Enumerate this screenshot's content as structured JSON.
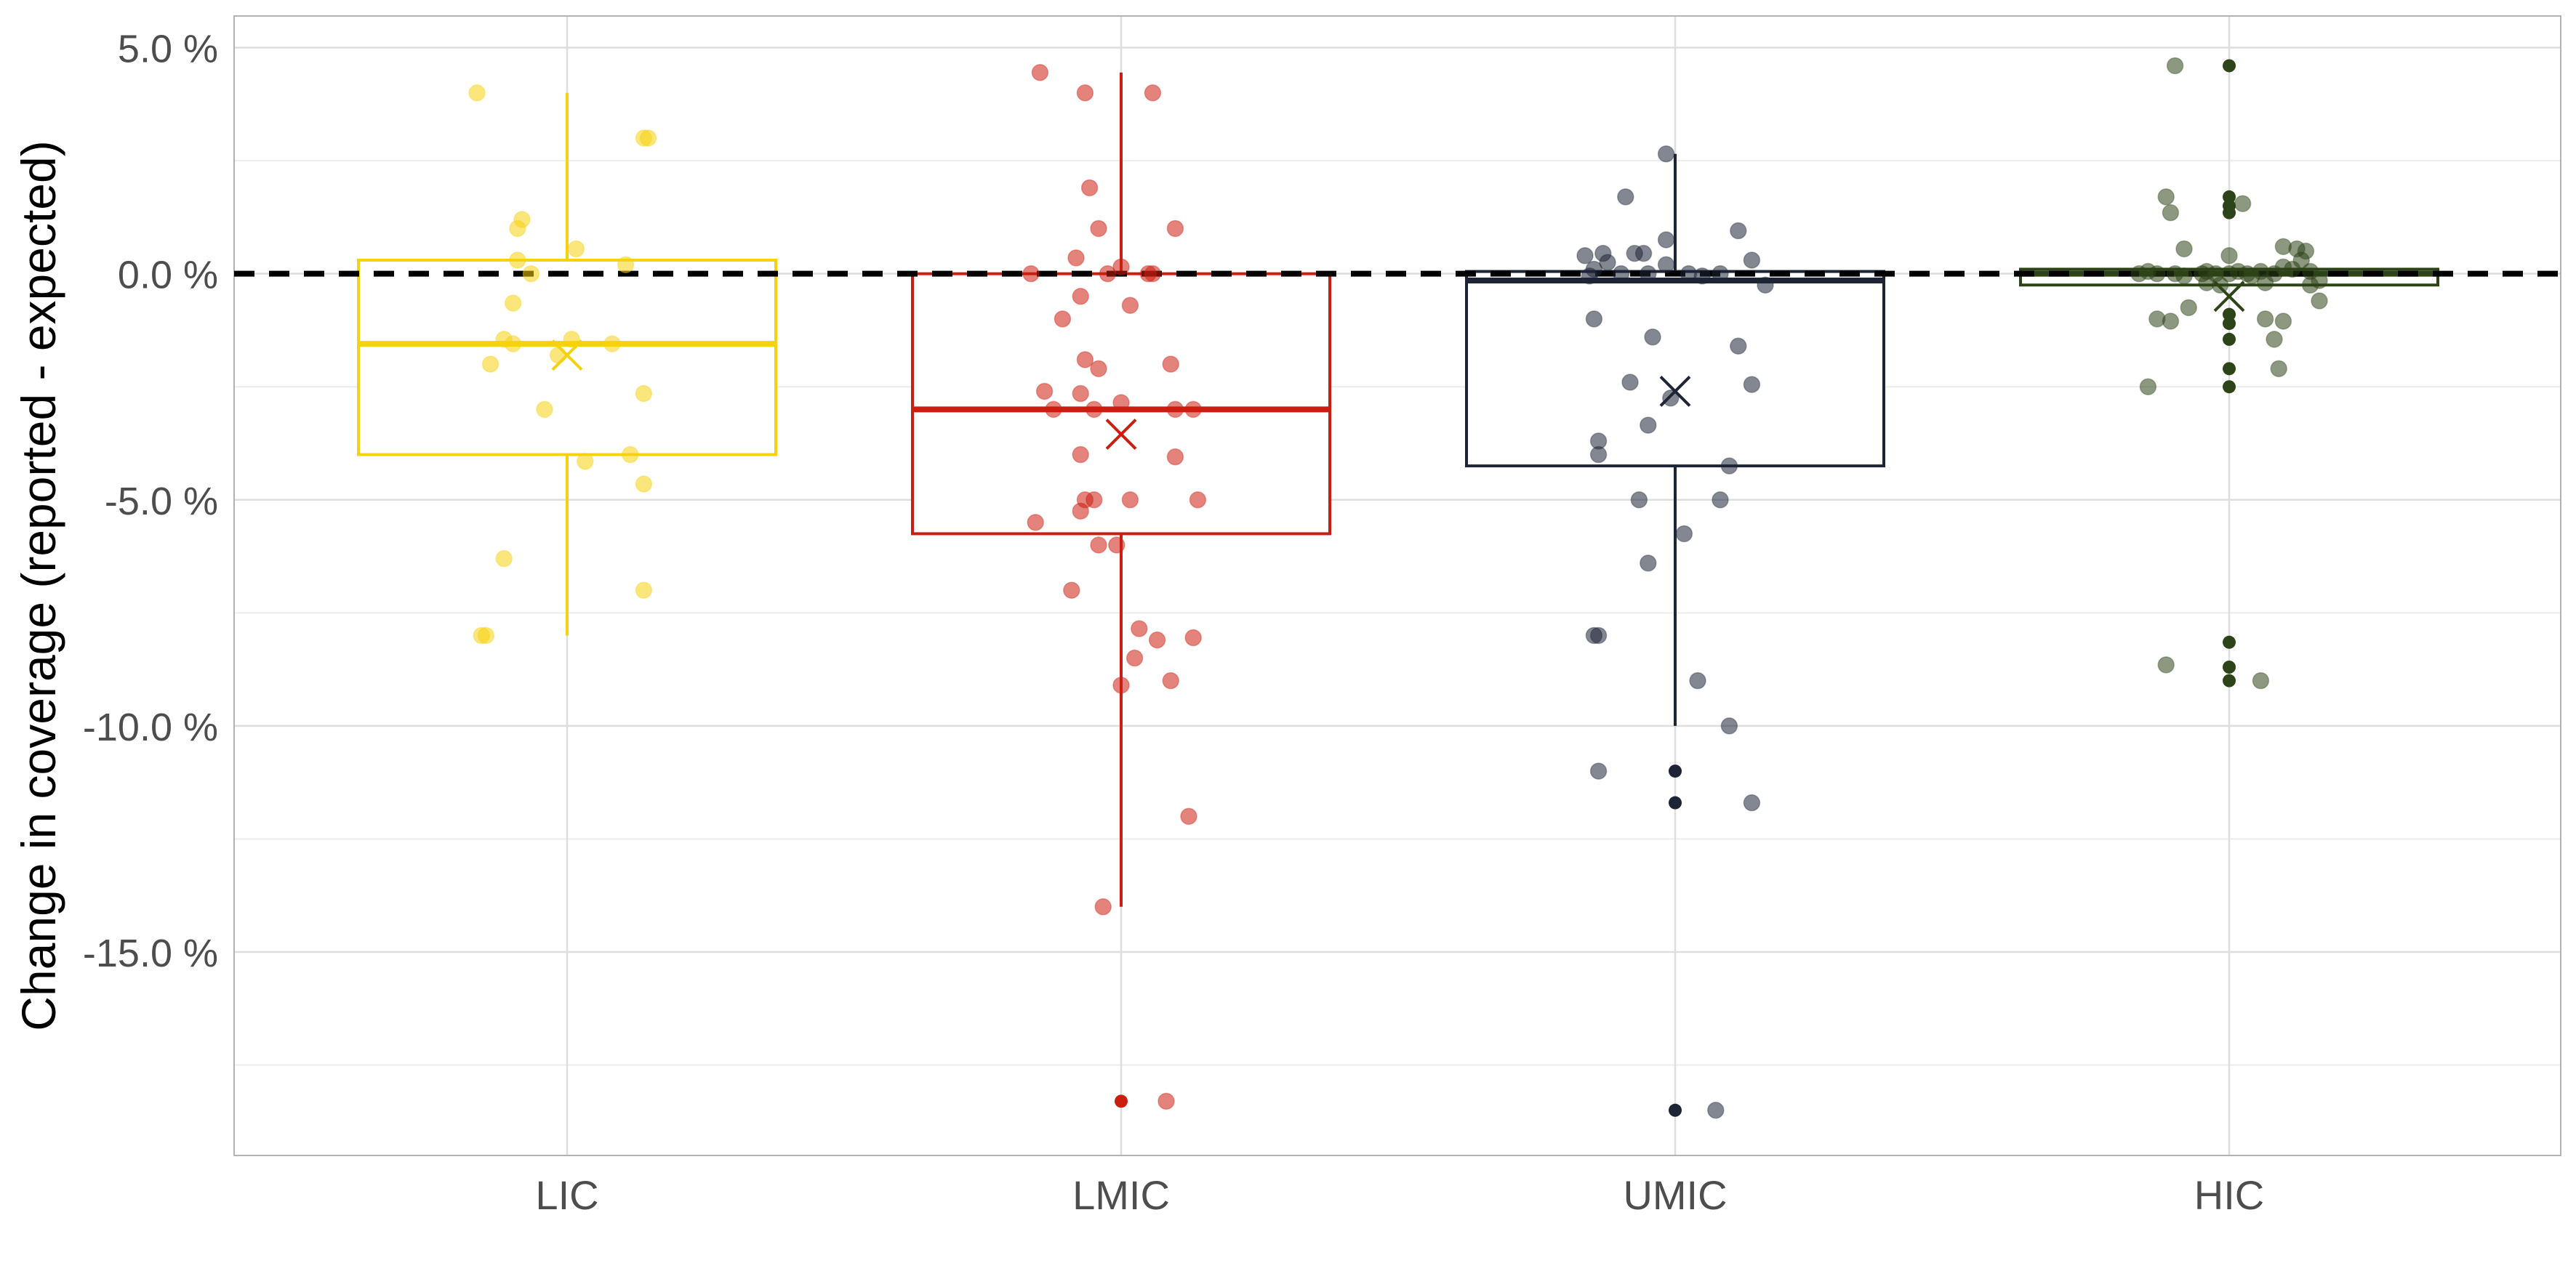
{
  "chart_data": {
    "type": "box",
    "title": "",
    "xlabel": "",
    "ylabel": "Change in coverage (reported - expected)",
    "ylim": [
      -19.5,
      5.7
    ],
    "yticks": [
      5,
      0,
      -5,
      -10,
      -15
    ],
    "ytick_labels": [
      "5.0 %",
      "0.0 %",
      "-5.0 %",
      "-10.0 %",
      "-15.0 %"
    ],
    "reference_line": 0,
    "grid": true,
    "legend": "none",
    "categories": [
      "LIC",
      "LMIC",
      "UMIC",
      "HIC"
    ],
    "groups": [
      {
        "name": "LIC",
        "color": "#f5d20f",
        "box": {
          "q1": -4.0,
          "median": -1.55,
          "q3": 0.3,
          "whisker_low": -8.0,
          "whisker_high": 4.0,
          "mean": -1.8
        },
        "outliers": [],
        "points": [
          [
            -0.2,
            4.0
          ],
          [
            0.17,
            3.0
          ],
          [
            0.18,
            3.0
          ],
          [
            -0.1,
            1.2
          ],
          [
            -0.11,
            1.0
          ],
          [
            0.02,
            0.55
          ],
          [
            -0.11,
            0.3
          ],
          [
            0.13,
            0.2
          ],
          [
            -0.08,
            0.0
          ],
          [
            -0.12,
            -0.65
          ],
          [
            -0.14,
            -1.45
          ],
          [
            -0.12,
            -1.55
          ],
          [
            0.01,
            -1.45
          ],
          [
            0.1,
            -1.55
          ],
          [
            -0.02,
            -1.8
          ],
          [
            -0.17,
            -2.0
          ],
          [
            0.17,
            -2.65
          ],
          [
            -0.05,
            -3.0
          ],
          [
            0.14,
            -4.0
          ],
          [
            0.04,
            -4.15
          ],
          [
            0.17,
            -4.65
          ],
          [
            -0.14,
            -6.3
          ],
          [
            0.17,
            -7.0
          ],
          [
            -0.18,
            -8.0
          ],
          [
            -0.19,
            -8.0
          ]
        ]
      },
      {
        "name": "LMIC",
        "color": "#cc1e10",
        "box": {
          "q1": -5.75,
          "median": -3.0,
          "q3": 0.0,
          "whisker_low": -14.0,
          "whisker_high": 4.45,
          "mean": -3.55
        },
        "outliers": [
          -18.3
        ],
        "points": [
          [
            -0.18,
            4.45
          ],
          [
            -0.08,
            4.0
          ],
          [
            0.07,
            4.0
          ],
          [
            -0.07,
            1.9
          ],
          [
            -0.05,
            1.0
          ],
          [
            0.12,
            1.0
          ],
          [
            -0.1,
            0.35
          ],
          [
            -0.2,
            0.0
          ],
          [
            -0.03,
            0.0
          ],
          [
            0.0,
            0.15
          ],
          [
            0.06,
            0.0
          ],
          [
            0.07,
            0.0
          ],
          [
            -0.09,
            -0.5
          ],
          [
            0.02,
            -0.7
          ],
          [
            -0.13,
            -1.0
          ],
          [
            -0.08,
            -1.9
          ],
          [
            -0.05,
            -2.1
          ],
          [
            0.11,
            -2.0
          ],
          [
            -0.17,
            -2.6
          ],
          [
            -0.09,
            -2.65
          ],
          [
            -0.15,
            -3.0
          ],
          [
            -0.06,
            -3.0
          ],
          [
            0.0,
            -2.85
          ],
          [
            0.12,
            -3.0
          ],
          [
            0.16,
            -3.0
          ],
          [
            -0.09,
            -4.0
          ],
          [
            0.12,
            -4.05
          ],
          [
            -0.08,
            -5.0
          ],
          [
            -0.06,
            -5.0
          ],
          [
            0.02,
            -5.0
          ],
          [
            0.17,
            -5.0
          ],
          [
            -0.19,
            -5.5
          ],
          [
            -0.09,
            -5.25
          ],
          [
            -0.05,
            -6.0
          ],
          [
            -0.01,
            -6.0
          ],
          [
            -0.11,
            -7.0
          ],
          [
            0.04,
            -7.85
          ],
          [
            0.08,
            -8.1
          ],
          [
            0.16,
            -8.05
          ],
          [
            0.03,
            -8.5
          ],
          [
            0.11,
            -9.0
          ],
          [
            0.0,
            -9.1
          ],
          [
            0.15,
            -12.0
          ],
          [
            -0.04,
            -14.0
          ],
          [
            0.1,
            -18.3
          ]
        ]
      },
      {
        "name": "UMIC",
        "color": "#1d2436",
        "box": {
          "q1": -4.25,
          "median": -0.15,
          "q3": 0.05,
          "whisker_low": -10.0,
          "whisker_high": 2.65,
          "mean": -2.6
        },
        "outliers": [
          -11.0,
          -11.7,
          -18.5
        ],
        "points": [
          [
            -0.02,
            2.65
          ],
          [
            -0.11,
            1.7
          ],
          [
            -0.02,
            0.75
          ],
          [
            0.14,
            0.95
          ],
          [
            -0.2,
            0.4
          ],
          [
            -0.16,
            0.45
          ],
          [
            -0.09,
            0.45
          ],
          [
            -0.07,
            0.45
          ],
          [
            0.17,
            0.3
          ],
          [
            -0.18,
            0.1
          ],
          [
            -0.15,
            0.25
          ],
          [
            -0.06,
            0.0
          ],
          [
            -0.02,
            0.2
          ],
          [
            0.03,
            0.0
          ],
          [
            0.06,
            -0.05
          ],
          [
            -0.19,
            -0.05
          ],
          [
            -0.12,
            0.0
          ],
          [
            0.1,
            0.0
          ],
          [
            0.2,
            -0.25
          ],
          [
            -0.18,
            -1.0
          ],
          [
            -0.05,
            -1.4
          ],
          [
            0.14,
            -1.6
          ],
          [
            -0.1,
            -2.4
          ],
          [
            0.17,
            -2.45
          ],
          [
            -0.06,
            -3.35
          ],
          [
            -0.17,
            -3.7
          ],
          [
            -0.01,
            -2.75
          ],
          [
            -0.17,
            -4.0
          ],
          [
            0.12,
            -4.25
          ],
          [
            -0.08,
            -5.0
          ],
          [
            0.1,
            -5.0
          ],
          [
            0.02,
            -5.75
          ],
          [
            -0.06,
            -6.4
          ],
          [
            -0.17,
            -8.0
          ],
          [
            -0.18,
            -8.0
          ],
          [
            0.05,
            -9.0
          ],
          [
            0.12,
            -10.0
          ],
          [
            -0.17,
            -11.0
          ],
          [
            0.17,
            -11.7
          ],
          [
            0.09,
            -18.5
          ]
        ]
      },
      {
        "name": "HIC",
        "color": "#2d4418",
        "box": {
          "q1": -0.25,
          "median": 0.0,
          "q3": 0.1,
          "whisker_low": -0.25,
          "whisker_high": 0.1,
          "mean": -0.5
        },
        "outliers": [
          4.6,
          1.7,
          1.5,
          1.35,
          -0.9,
          -1.1,
          -1.45,
          -2.1,
          -2.5,
          -8.15,
          -8.7,
          -9.0
        ],
        "points": [
          [
            -0.12,
            4.6
          ],
          [
            -0.14,
            1.7
          ],
          [
            -0.13,
            1.35
          ],
          [
            -0.1,
            0.55
          ],
          [
            0.0,
            0.4
          ],
          [
            0.03,
            1.55
          ],
          [
            0.12,
            0.6
          ],
          [
            0.15,
            0.55
          ],
          [
            0.17,
            0.5
          ],
          [
            -0.2,
            0.0
          ],
          [
            -0.18,
            0.05
          ],
          [
            -0.16,
            0.0
          ],
          [
            -0.12,
            0.0
          ],
          [
            -0.1,
            -0.05
          ],
          [
            -0.06,
            0.0
          ],
          [
            -0.05,
            0.05
          ],
          [
            -0.03,
            0.0
          ],
          [
            0.0,
            0.0
          ],
          [
            0.02,
            0.05
          ],
          [
            0.04,
            0.0
          ],
          [
            0.05,
            -0.05
          ],
          [
            0.07,
            0.05
          ],
          [
            0.1,
            0.0
          ],
          [
            0.12,
            0.15
          ],
          [
            0.14,
            0.1
          ],
          [
            0.16,
            0.3
          ],
          [
            0.18,
            0.05
          ],
          [
            0.2,
            -0.15
          ],
          [
            -0.05,
            -0.2
          ],
          [
            -0.02,
            -0.25
          ],
          [
            0.08,
            -0.2
          ],
          [
            0.18,
            -0.25
          ],
          [
            0.2,
            -0.6
          ],
          [
            -0.09,
            -0.75
          ],
          [
            -0.16,
            -1.0
          ],
          [
            -0.13,
            -1.05
          ],
          [
            0.08,
            -1.0
          ],
          [
            0.12,
            -1.05
          ],
          [
            0.1,
            -1.45
          ],
          [
            0.11,
            -2.1
          ],
          [
            -0.18,
            -2.5
          ],
          [
            -0.14,
            -8.65
          ],
          [
            0.07,
            -9.0
          ]
        ]
      }
    ]
  }
}
